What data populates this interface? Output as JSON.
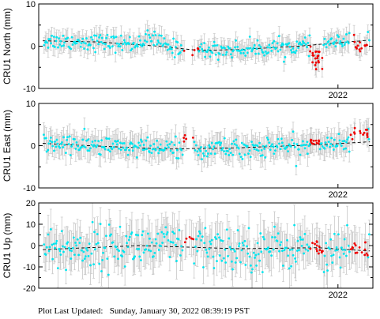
{
  "footer": {
    "label": "Plot Last Updated:",
    "timestamp": "Sunday, January 30, 2022 08:39:19 PST"
  },
  "colors": {
    "normal": "#00e5ee",
    "outlier": "#ee0000",
    "error_bar": "#c8c8c8",
    "trend": "#000000"
  },
  "chart_data": [
    {
      "type": "scatter",
      "ylabel": "CRU1 North (mm)",
      "ylim": [
        -10,
        10
      ],
      "yticks": [
        -10,
        0,
        10
      ],
      "xlim": [
        2019.0,
        2022.35
      ],
      "xticks": [
        {
          "x": 2022.0,
          "label": "2022"
        }
      ],
      "grid": false,
      "trend": [
        [
          2019.0,
          1.3
        ],
        [
          2019.6,
          1.0
        ],
        [
          2020.2,
          0.0
        ],
        [
          2020.6,
          -1.0
        ],
        [
          2021.0,
          -0.8
        ],
        [
          2021.6,
          0.0
        ],
        [
          2022.3,
          1.4
        ]
      ],
      "outlier_clusters": [
        {
          "x": [
            2020.45,
            2020.6
          ],
          "mean": -1.0,
          "spread": 1.0,
          "n": 5
        },
        {
          "x": [
            2021.72,
            2021.85
          ],
          "mean": -2.5,
          "spread": 2.5,
          "n": 22
        },
        {
          "x": [
            2022.12,
            2022.3
          ],
          "mean": 0.0,
          "spread": 1.5,
          "n": 14
        }
      ],
      "anomalies": [
        {
          "x": [
            2019.95,
            2020.3
          ],
          "shift": 1.5
        }
      ],
      "noise": 1.0,
      "error": 2.0
    },
    {
      "type": "scatter",
      "ylabel": "CRU1 East (mm)",
      "ylim": [
        -10,
        10
      ],
      "yticks": [
        -10,
        0,
        10
      ],
      "xlim": [
        2019.0,
        2022.35
      ],
      "xticks": [
        {
          "x": 2022.0,
          "label": "2022"
        }
      ],
      "grid": false,
      "trend": [
        [
          2019.0,
          0.6
        ],
        [
          2019.5,
          0.0
        ],
        [
          2020.3,
          -0.8
        ],
        [
          2021.0,
          -0.5
        ],
        [
          2021.8,
          0.2
        ],
        [
          2022.3,
          0.9
        ]
      ],
      "outlier_clusters": [
        {
          "x": [
            2020.45,
            2020.55
          ],
          "mean": 1.5,
          "spread": 1.2,
          "n": 5
        },
        {
          "x": [
            2021.72,
            2021.82
          ],
          "mean": 1.2,
          "spread": 1.2,
          "n": 12
        },
        {
          "x": [
            2022.12,
            2022.3
          ],
          "mean": 2.8,
          "spread": 1.2,
          "n": 14
        }
      ],
      "anomalies": [],
      "noise": 1.2,
      "error": 2.5
    },
    {
      "type": "scatter",
      "ylabel": "CRU1 Up (mm)",
      "ylim": [
        -20,
        20
      ],
      "yticks": [
        -20,
        -10,
        0,
        10,
        20
      ],
      "xlim": [
        2019.0,
        2022.35
      ],
      "xticks": [
        {
          "x": 2022.0,
          "label": "2022"
        }
      ],
      "grid": false,
      "trend": [
        [
          2019.0,
          -2.0
        ],
        [
          2020.0,
          0.0
        ],
        [
          2021.0,
          -1.5
        ],
        [
          2021.8,
          -1.0
        ],
        [
          2022.3,
          -2.5
        ]
      ],
      "outlier_clusters": [
        {
          "x": [
            2020.45,
            2020.55
          ],
          "mean": 3.0,
          "spread": 3.0,
          "n": 5
        },
        {
          "x": [
            2021.72,
            2021.85
          ],
          "mean": -1.0,
          "spread": 4.5,
          "n": 14
        },
        {
          "x": [
            2022.12,
            2022.3
          ],
          "mean": -1.5,
          "spread": 4.0,
          "n": 14
        }
      ],
      "anomalies": [],
      "noise": 5.0,
      "error": 8.0
    }
  ]
}
